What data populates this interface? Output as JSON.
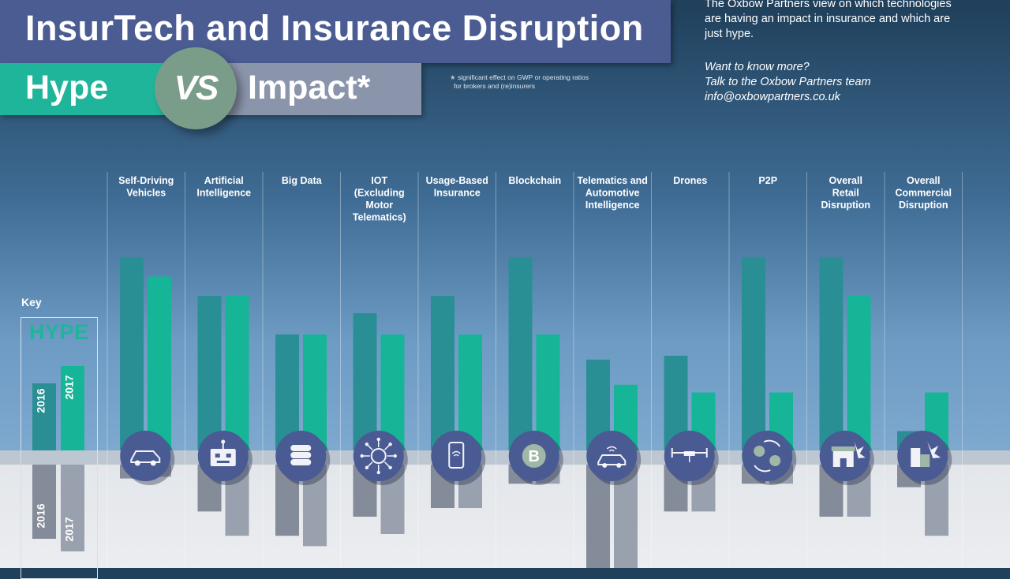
{
  "header": {
    "title": "InsurTech and Insurance Disruption",
    "hype": "Hype",
    "vs": "VS",
    "impact": "Impact*",
    "footnote_line1": "significant effect on GWP or operating ratios",
    "footnote_line2": "for brokers and (re)insurers"
  },
  "intro_lines": [
    "The Oxbow Partners view on which technologies",
    "are having an impact in insurance and which are",
    "just hype."
  ],
  "contact": {
    "line1": "Want to know more?",
    "line2": "Talk to the Oxbow Partners team",
    "email": "info@oxbowpartners.co.uk"
  },
  "key": {
    "label": "Key",
    "hype_label": "HYPE",
    "year1": "2016",
    "year2": "2017"
  },
  "colors": {
    "hype_2016": "#2a8f94",
    "hype_2017": "#16b597",
    "impact_2016": "#848b99",
    "impact_2017": "#9aa1ae",
    "icon_circle": "#4a5a93"
  },
  "chart_data": {
    "type": "bar",
    "categories": [
      {
        "lines": [
          "Self-Driving",
          "Vehicles"
        ],
        "icon": "car-icon"
      },
      {
        "lines": [
          "Artificial",
          "Intelligence"
        ],
        "icon": "robot-icon"
      },
      {
        "lines": [
          "Big Data"
        ],
        "icon": "database-icon"
      },
      {
        "lines": [
          "IOT",
          "(Excluding",
          "Motor",
          "Telematics)"
        ],
        "icon": "network-icon"
      },
      {
        "lines": [
          "Usage-Based",
          "Insurance"
        ],
        "icon": "phone-icon"
      },
      {
        "lines": [
          "Blockchain"
        ],
        "icon": "blockchain-icon"
      },
      {
        "lines": [
          "Telematics and",
          "Automotive",
          "Intelligence"
        ],
        "icon": "connected-car-icon"
      },
      {
        "lines": [
          "Drones"
        ],
        "icon": "drone-icon"
      },
      {
        "lines": [
          "P2P"
        ],
        "icon": "p2p-icon"
      },
      {
        "lines": [
          "Overall",
          "Retail",
          "Disruption"
        ],
        "icon": "retail-store-icon"
      },
      {
        "lines": [
          "Overall",
          "Commercial",
          "Disruption"
        ],
        "icon": "commercial-building-icon"
      }
    ],
    "hype": {
      "series": [
        {
          "name": "2016",
          "values": [
            100,
            80,
            60,
            71,
            80,
            100,
            47,
            49,
            100,
            100,
            10
          ]
        },
        {
          "name": "2017",
          "values": [
            90,
            80,
            60,
            60,
            60,
            60,
            34,
            30,
            30,
            80,
            30
          ]
        }
      ]
    },
    "impact": {
      "series": [
        {
          "name": "2016",
          "values": [
            8,
            27,
            41,
            30,
            25,
            11,
            65,
            27,
            11,
            30,
            13
          ]
        },
        {
          "name": "2017",
          "values": [
            7,
            41,
            47,
            40,
            25,
            11,
            65,
            27,
            11,
            30,
            41
          ]
        }
      ]
    }
  }
}
